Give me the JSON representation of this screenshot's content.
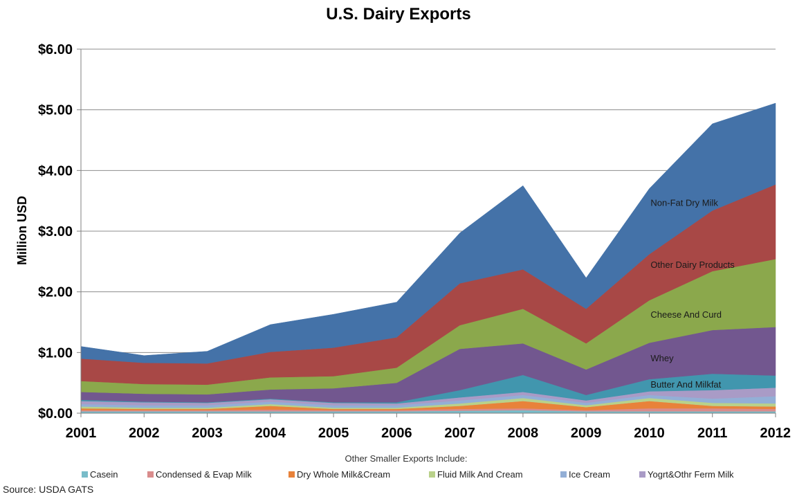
{
  "chart_data": {
    "type": "area",
    "stacked": true,
    "title": "U.S. Dairy Exports",
    "xlabel": "",
    "ylabel": "Million USD",
    "ylim": [
      0,
      6
    ],
    "y_ticks": [
      "$0.00",
      "$1.00",
      "$2.00",
      "$3.00",
      "$4.00",
      "$5.00",
      "$6.00"
    ],
    "y_tick_values": [
      0,
      1,
      2,
      3,
      4,
      5,
      6
    ],
    "categories": [
      "2001",
      "2002",
      "2003",
      "2004",
      "2005",
      "2006",
      "2007",
      "2008",
      "2009",
      "2010",
      "2011",
      "2012"
    ],
    "series": [
      {
        "name": "Casein",
        "color": "#79BCC9",
        "in_legend": true,
        "values": [
          0.03,
          0.03,
          0.03,
          0.03,
          0.03,
          0.03,
          0.04,
          0.05,
          0.03,
          0.03,
          0.03,
          0.03
        ]
      },
      {
        "name": "Condensed & Evap Milk",
        "color": "#D98C8C",
        "in_legend": true,
        "values": [
          0.02,
          0.02,
          0.02,
          0.03,
          0.02,
          0.02,
          0.03,
          0.03,
          0.02,
          0.05,
          0.05,
          0.04
        ]
      },
      {
        "name": "Dry Whole Milk&Cream",
        "color": "#E8823A",
        "in_legend": true,
        "values": [
          0.03,
          0.02,
          0.02,
          0.06,
          0.02,
          0.02,
          0.05,
          0.12,
          0.05,
          0.12,
          0.04,
          0.04
        ]
      },
      {
        "name": "Fluid Milk And Cream",
        "color": "#B9D18A",
        "in_legend": true,
        "values": [
          0.03,
          0.02,
          0.02,
          0.03,
          0.02,
          0.02,
          0.04,
          0.05,
          0.03,
          0.05,
          0.05,
          0.05
        ]
      },
      {
        "name": "Ice Cream",
        "color": "#93AFD6",
        "in_legend": true,
        "values": [
          0.04,
          0.04,
          0.04,
          0.04,
          0.04,
          0.04,
          0.05,
          0.05,
          0.04,
          0.05,
          0.07,
          0.12
        ]
      },
      {
        "name": "Yogrt&Othr Ferm Milk",
        "color": "#A99BC6",
        "in_legend": true,
        "values": [
          0.05,
          0.05,
          0.04,
          0.04,
          0.04,
          0.03,
          0.05,
          0.05,
          0.04,
          0.06,
          0.14,
          0.14
        ]
      },
      {
        "name": "Butter And Milkfat",
        "color": "#4196AE",
        "in_legend": false,
        "values": [
          0.02,
          0.01,
          0.01,
          0.01,
          0.01,
          0.02,
          0.12,
          0.28,
          0.09,
          0.2,
          0.27,
          0.2
        ]
      },
      {
        "name": "Whey",
        "color": "#72578F",
        "in_legend": false,
        "values": [
          0.13,
          0.13,
          0.13,
          0.15,
          0.23,
          0.32,
          0.68,
          0.52,
          0.42,
          0.6,
          0.72,
          0.8
        ]
      },
      {
        "name": "Cheese And Curd",
        "color": "#8BA84C",
        "in_legend": false,
        "values": [
          0.18,
          0.16,
          0.16,
          0.2,
          0.2,
          0.25,
          0.39,
          0.57,
          0.43,
          0.7,
          0.97,
          1.12
        ]
      },
      {
        "name": "Other Dairy Products",
        "color": "#A84846",
        "in_legend": false,
        "values": [
          0.37,
          0.35,
          0.35,
          0.42,
          0.47,
          0.5,
          0.69,
          0.65,
          0.57,
          0.76,
          1.0,
          1.23
        ]
      },
      {
        "name": "Non-Fat Dry Milk",
        "color": "#4472A8",
        "in_legend": false,
        "values": [
          0.2,
          0.12,
          0.2,
          0.45,
          0.55,
          0.58,
          0.83,
          1.38,
          0.51,
          1.08,
          1.43,
          1.34
        ]
      }
    ],
    "annotations": [
      {
        "text": "Non-Fat Dry Milk",
        "series": "Non-Fat Dry Milk"
      },
      {
        "text": "Other Dairy Products",
        "series": "Other Dairy Products"
      },
      {
        "text": "Cheese And Curd",
        "series": "Cheese And Curd"
      },
      {
        "text": "Whey",
        "series": "Whey"
      },
      {
        "text": "Butter And Milkfat",
        "series": "Butter And Milkfat"
      }
    ],
    "legend_note": "Other Smaller Exports Include:",
    "source": "Source: USDA GATS"
  }
}
